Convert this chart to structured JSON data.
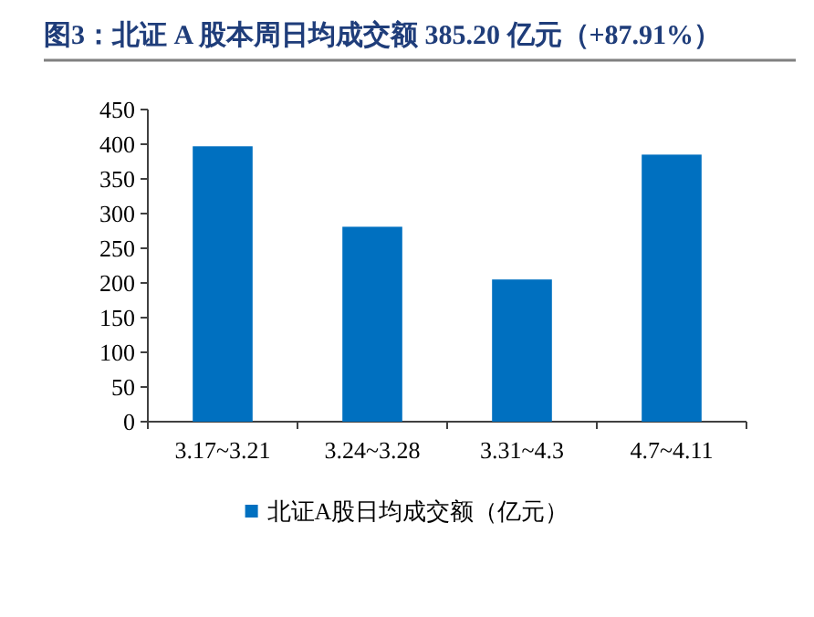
{
  "chart_data": {
    "type": "bar",
    "title": "图3：北证 A 股本周日均成交额 385.20 亿元（+87.91%）",
    "categories": [
      "3.17~3.21",
      "3.24~3.28",
      "3.31~4.3",
      "4.7~4.11"
    ],
    "series": [
      {
        "name": "北证A股日均成交额（亿元）",
        "color": "#0070c0",
        "values": [
          397,
          281,
          205,
          385
        ]
      }
    ],
    "ylim": [
      0,
      450
    ],
    "yticks": [
      0,
      50,
      100,
      150,
      200,
      250,
      300,
      350,
      400,
      450
    ],
    "legend": "bottom"
  }
}
